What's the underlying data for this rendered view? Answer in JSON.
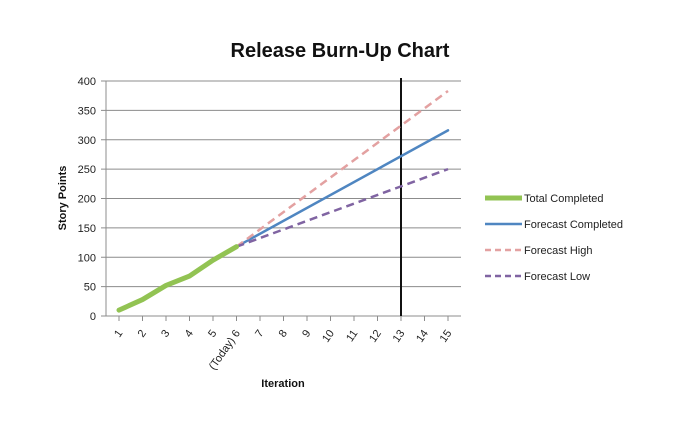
{
  "chart_data": {
    "type": "line",
    "title": "Release Burn-Up Chart",
    "xlabel": "Iteration",
    "ylabel": "Story Points",
    "categories": [
      "1",
      "2",
      "3",
      "4",
      "5",
      "(Today) 6",
      "7",
      "8",
      "9",
      "10",
      "11",
      "12",
      "13",
      "14",
      "15"
    ],
    "ylim": [
      0,
      400
    ],
    "yticks": [
      0,
      50,
      100,
      150,
      200,
      250,
      300,
      350,
      400
    ],
    "grid": true,
    "legend_position": "right",
    "marker_line_iteration": 13,
    "series": [
      {
        "name": "Total Completed",
        "color": "#92c353",
        "style": "solid-thick",
        "points": [
          [
            1,
            10
          ],
          [
            2,
            28
          ],
          [
            3,
            52
          ],
          [
            4,
            68
          ],
          [
            5,
            95
          ],
          [
            6,
            118
          ]
        ]
      },
      {
        "name": "Forecast Completed",
        "color": "#4f86c1",
        "style": "solid",
        "points": [
          [
            6,
            118
          ],
          [
            15,
            316
          ]
        ]
      },
      {
        "name": "Forecast High",
        "color": "#e3a1a1",
        "style": "dashed",
        "points": [
          [
            6,
            118
          ],
          [
            15,
            383
          ]
        ]
      },
      {
        "name": "Forecast Low",
        "color": "#8064a2",
        "style": "dashed",
        "points": [
          [
            6,
            118
          ],
          [
            15,
            250
          ]
        ]
      }
    ]
  }
}
